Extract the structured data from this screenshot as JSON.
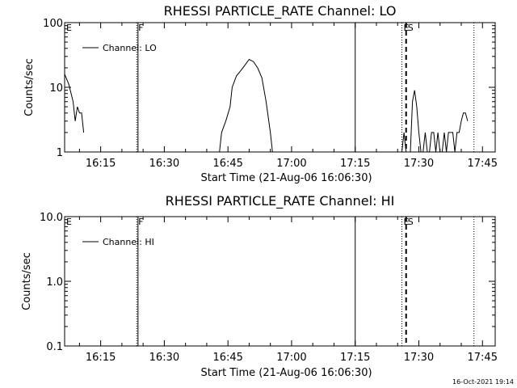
{
  "chart_data": [
    {
      "type": "line",
      "title": "RHESSI PARTICLE_RATE Channel: LO",
      "xlabel": "Start Time (21-Aug-06 16:06:30)",
      "ylabel": "Counts/sec",
      "xlim": [
        "16:06:30",
        "17:48:00"
      ],
      "ylim": [
        1,
        100
      ],
      "yscale": "log",
      "xticks": [
        "16:15",
        "16:30",
        "16:45",
        "17:00",
        "17:15",
        "17:30",
        "17:45"
      ],
      "yticks": [
        "1",
        "10",
        "100"
      ],
      "legend": {
        "label": "Channel: LO",
        "position": "top-left"
      },
      "markers": [
        {
          "label": "E",
          "time": "16:06:30",
          "style": "dotted"
        },
        {
          "label": "F",
          "time": "16:23:30",
          "style": "dotted"
        },
        {
          "label": "",
          "time": "16:23:48",
          "style": "solid"
        },
        {
          "label": "",
          "time": "17:15:00",
          "style": "solid"
        },
        {
          "label": "E",
          "time": "17:26:00",
          "style": "dotted"
        },
        {
          "label": "S",
          "time": "17:27:00",
          "style": "dashed"
        },
        {
          "label": "",
          "time": "17:43:00",
          "style": "dotted"
        }
      ],
      "series": [
        {
          "name": "Channel: LO",
          "segments": [
            [
              [
                "16:06:30",
                16
              ],
              [
                "16:07:30",
                11
              ],
              [
                "16:08:30",
                6
              ],
              [
                "16:09:00",
                3
              ],
              [
                "16:09:30",
                5
              ],
              [
                "16:10:00",
                4
              ],
              [
                "16:10:30",
                4
              ],
              [
                "16:11:00",
                2
              ]
            ],
            [
              [
                "16:43:00",
                1
              ],
              [
                "16:43:30",
                2
              ],
              [
                "16:44:30",
                3
              ],
              [
                "16:45:30",
                5
              ],
              [
                "16:46:00",
                10
              ],
              [
                "16:47:00",
                15
              ],
              [
                "16:48:00",
                18
              ],
              [
                "16:49:00",
                22
              ],
              [
                "16:50:00",
                27
              ],
              [
                "16:51:00",
                25
              ],
              [
                "16:52:00",
                20
              ],
              [
                "16:53:00",
                14
              ],
              [
                "16:54:00",
                6
              ],
              [
                "16:55:00",
                2
              ],
              [
                "16:55:30",
                1
              ]
            ],
            [
              [
                "17:26:00",
                1
              ],
              [
                "17:26:30",
                2
              ],
              [
                "17:27:00",
                1
              ]
            ],
            [
              [
                "17:28:00",
                1
              ],
              [
                "17:28:30",
                6
              ],
              [
                "17:29:00",
                9
              ],
              [
                "17:29:30",
                5
              ],
              [
                "17:30:00",
                2
              ],
              [
                "17:30:30",
                1
              ],
              [
                "17:31:00",
                1
              ],
              [
                "17:31:30",
                2
              ],
              [
                "17:32:00",
                1
              ],
              [
                "17:32:30",
                1
              ],
              [
                "17:33:00",
                2
              ],
              [
                "17:33:30",
                2
              ],
              [
                "17:34:00",
                1
              ],
              [
                "17:34:30",
                2
              ],
              [
                "17:35:00",
                1
              ],
              [
                "17:35:30",
                1
              ],
              [
                "17:36:00",
                2
              ],
              [
                "17:36:30",
                1
              ],
              [
                "17:37:00",
                2
              ],
              [
                "17:37:30",
                2
              ],
              [
                "17:38:00",
                2
              ],
              [
                "17:38:30",
                1
              ],
              [
                "17:39:00",
                2
              ],
              [
                "17:39:30",
                2
              ],
              [
                "17:40:00",
                3
              ],
              [
                "17:40:30",
                4
              ],
              [
                "17:41:00",
                4
              ],
              [
                "17:41:30",
                3
              ]
            ]
          ]
        }
      ]
    },
    {
      "type": "line",
      "title": "RHESSI PARTICLE_RATE Channel: HI",
      "xlabel": "Start Time (21-Aug-06 16:06:30)",
      "ylabel": "Counts/sec",
      "xlim": [
        "16:06:30",
        "17:48:00"
      ],
      "ylim": [
        0.1,
        10
      ],
      "yscale": "log",
      "xticks": [
        "16:15",
        "16:30",
        "16:45",
        "17:00",
        "17:15",
        "17:30",
        "17:45"
      ],
      "yticks": [
        "0.1",
        "1.0",
        "10.0"
      ],
      "legend": {
        "label": "Channel: HI",
        "position": "top-left"
      },
      "markers": [
        {
          "label": "E",
          "time": "16:06:30",
          "style": "dotted"
        },
        {
          "label": "F",
          "time": "16:23:30",
          "style": "dotted"
        },
        {
          "label": "",
          "time": "16:23:48",
          "style": "solid"
        },
        {
          "label": "",
          "time": "17:15:00",
          "style": "solid"
        },
        {
          "label": "E",
          "time": "17:26:00",
          "style": "dotted"
        },
        {
          "label": "S",
          "time": "17:27:00",
          "style": "dashed"
        },
        {
          "label": "",
          "time": "17:43:00",
          "style": "dotted"
        }
      ],
      "series": [
        {
          "name": "Channel: HI",
          "segments": []
        }
      ]
    }
  ],
  "timestamp": "16-Oct-2021 19:14"
}
